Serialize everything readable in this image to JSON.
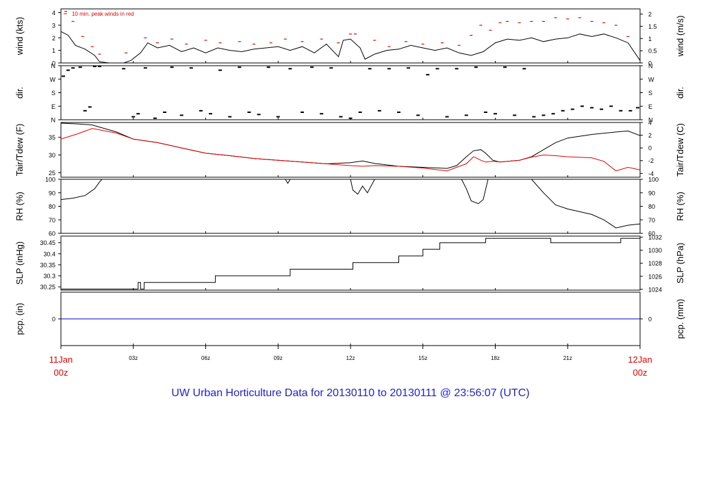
{
  "caption": "UW Urban Horticulture Data for 20130110  to  20130111 @ 23:56:07  (UTC)",
  "colors": {
    "frame": "#000000",
    "primary": "#000000",
    "secondary": "#e00000",
    "precip": "#0000cc",
    "time_label": "#e00000",
    "caption": "#1f1fd0"
  },
  "x_axis": {
    "range_hours": [
      0,
      24
    ],
    "ticks": [
      {
        "hour": 0,
        "label": "11Jan",
        "sublabel": "00z",
        "color": "#e00000",
        "big": true
      },
      {
        "hour": 3,
        "label": "03z"
      },
      {
        "hour": 6,
        "label": "06z"
      },
      {
        "hour": 9,
        "label": "09z"
      },
      {
        "hour": 12,
        "label": "12z"
      },
      {
        "hour": 15,
        "label": "15z"
      },
      {
        "hour": 18,
        "label": "18z"
      },
      {
        "hour": 21,
        "label": "21z"
      },
      {
        "hour": 24,
        "label": "12Jan",
        "sublabel": "00z",
        "color": "#e00000",
        "big": true
      }
    ]
  },
  "chart_data": [
    {
      "id": "wind",
      "type": "line",
      "left_label": "wind (kts)",
      "right_label": "wind (m/s)",
      "ylim": [
        0,
        4.3
      ],
      "left_ticks": [
        0,
        1,
        2,
        3,
        4
      ],
      "right_ticks": [
        "0",
        "0.5",
        "1",
        "1.5",
        "2"
      ],
      "right_factor": 0.514444,
      "annotation": "10 min. peak winds in red",
      "series": [
        {
          "name": "wind",
          "x": [
            0,
            0.3,
            0.6,
            1,
            1.4,
            1.6,
            2,
            2.6,
            2.9,
            3.3,
            3.6,
            4,
            4.5,
            5,
            5.5,
            6,
            6.5,
            7,
            7.5,
            8,
            8.5,
            9,
            9.5,
            10,
            10.5,
            11,
            11.5,
            11.7,
            12,
            12.4,
            12.6,
            13,
            13.5,
            14,
            14.5,
            15,
            15.5,
            16,
            16.5,
            17,
            17.5,
            18,
            18.5,
            19,
            19.5,
            20,
            20.5,
            21,
            21.5,
            22,
            22.5,
            23,
            23.5,
            24
          ],
          "y": [
            2.5,
            2.2,
            1.4,
            1.1,
            0.6,
            0.1,
            0,
            0,
            0.2,
            0.8,
            1.6,
            1.2,
            1.4,
            0.9,
            1.2,
            0.8,
            1.2,
            1.0,
            0.9,
            1.1,
            1.2,
            1.3,
            1.0,
            1.3,
            0.8,
            1.5,
            0.5,
            1.8,
            1.9,
            1.2,
            0.3,
            0.7,
            1.0,
            1.1,
            1.4,
            1.2,
            1.0,
            1.2,
            0.8,
            0.6,
            0.9,
            1.6,
            1.9,
            1.8,
            2.0,
            1.7,
            1.9,
            2.0,
            2.3,
            2.1,
            2.3,
            2.0,
            1.6,
            0.2
          ]
        },
        {
          "name": "10 min. peak winds",
          "style": "ticks",
          "x": [
            0.2,
            0.5,
            0.9,
            1.3,
            1.6,
            2.7,
            3.5,
            4.0,
            4.6,
            5.2,
            6.0,
            6.6,
            7.4,
            8.0,
            8.7,
            9.3,
            10.0,
            10.8,
            11.5,
            12.0,
            12.2,
            13.0,
            13.6,
            14.3,
            15.0,
            15.8,
            16.5,
            17.0,
            17.4,
            17.8,
            18.2,
            18.5,
            19.0,
            19.5,
            20.0,
            20.5,
            21.0,
            21.5,
            22.0,
            22.5,
            23.0,
            23.5
          ],
          "y": [
            4.1,
            3.3,
            2.1,
            1.3,
            0.7,
            0.8,
            2.0,
            1.6,
            1.9,
            1.5,
            1.8,
            1.6,
            1.7,
            1.5,
            1.6,
            1.9,
            1.7,
            1.9,
            1.6,
            2.3,
            2.3,
            1.8,
            1.3,
            1.7,
            1.5,
            1.6,
            1.4,
            2.2,
            3.0,
            2.6,
            3.2,
            3.3,
            3.2,
            3.3,
            3.3,
            3.6,
            3.5,
            3.6,
            3.3,
            3.2,
            3.0,
            2.1
          ]
        }
      ]
    },
    {
      "id": "dir",
      "type": "scatter",
      "left_label": "dir.",
      "right_label": "dir.",
      "ylim": [
        0,
        360
      ],
      "left_ticks": [
        {
          "value": 0,
          "label": "N"
        },
        {
          "value": 90,
          "label": "E"
        },
        {
          "value": 180,
          "label": "S"
        },
        {
          "value": 270,
          "label": "W"
        },
        {
          "value": 360,
          "label": "N"
        }
      ],
      "right_ticks": [
        {
          "value": 0,
          "label": "N"
        },
        {
          "value": 90,
          "label": "E"
        },
        {
          "value": 180,
          "label": "S"
        },
        {
          "value": 270,
          "label": "W"
        },
        {
          "value": 360,
          "label": "N"
        }
      ],
      "series": [
        {
          "name": "dir",
          "style": "dashes",
          "x": [
            0.1,
            0.3,
            0.5,
            0.8,
            1.0,
            1.2,
            1.4,
            1.6,
            2.6,
            3.0,
            3.2,
            3.5,
            3.9,
            4.3,
            4.6,
            5.0,
            5.4,
            5.8,
            6.2,
            6.6,
            7.0,
            7.4,
            7.8,
            8.2,
            8.6,
            9.0,
            9.5,
            10.0,
            10.4,
            10.8,
            11.2,
            11.6,
            12.0,
            12.4,
            12.8,
            13.2,
            13.6,
            14.0,
            14.4,
            14.8,
            15.2,
            15.6,
            16.0,
            16.4,
            16.8,
            17.2,
            17.6,
            18.0,
            18.4,
            18.8,
            19.2,
            19.6,
            20.0,
            20.4,
            20.8,
            21.2,
            21.6,
            22.0,
            22.4,
            22.8,
            23.2,
            23.6,
            23.9
          ],
          "y": [
            290,
            330,
            345,
            350,
            60,
            85,
            355,
            355,
            340,
            20,
            40,
            345,
            10,
            50,
            350,
            30,
            345,
            60,
            40,
            330,
            20,
            350,
            50,
            35,
            350,
            20,
            340,
            50,
            350,
            40,
            345,
            20,
            10,
            50,
            340,
            60,
            340,
            50,
            345,
            30,
            300,
            340,
            20,
            340,
            30,
            350,
            50,
            40,
            350,
            30,
            340,
            20,
            30,
            40,
            60,
            70,
            90,
            80,
            70,
            90,
            60,
            60,
            80
          ]
        }
      ]
    },
    {
      "id": "temp",
      "type": "line",
      "left_label": "Tair/Tdew (F)",
      "right_label": "Tair/Tdew (C)",
      "ylim": [
        23.7,
        39.2
      ],
      "left_ticks": [
        25,
        30,
        35
      ],
      "right_ticks": [
        "-4",
        "-2",
        "0",
        "2",
        "4"
      ],
      "right_mode": "celsius",
      "series": [
        {
          "name": "Tair",
          "x": [
            0,
            0.7,
            1.3,
            2.3,
            3,
            4,
            5,
            6,
            7,
            8,
            9,
            10,
            11,
            12,
            12.5,
            13,
            14,
            15,
            16,
            16.4,
            16.8,
            17.1,
            17.4,
            17.6,
            17.9,
            18.2,
            19,
            19.5,
            20,
            20.5,
            21,
            22,
            23,
            23.5,
            24
          ],
          "y": [
            39,
            38.8,
            38.5,
            36.5,
            34.5,
            33.5,
            32,
            30.5,
            29.8,
            29,
            28.5,
            28,
            27.5,
            27.8,
            28.3,
            27.6,
            26.8,
            26.5,
            26.2,
            27,
            29.5,
            31.2,
            31.5,
            30.5,
            28.5,
            28,
            28.5,
            29.5,
            31.5,
            33.5,
            34.8,
            35.8,
            36.5,
            36.8,
            35.5
          ]
        },
        {
          "name": "Tdew",
          "x": [
            0,
            0.7,
            1.3,
            2.3,
            3,
            4,
            5,
            6,
            7,
            8,
            9,
            10,
            11,
            12,
            12.5,
            13,
            14,
            15,
            16,
            16.4,
            16.8,
            17.1,
            17.4,
            17.6,
            17.9,
            18.2,
            19,
            19.5,
            20,
            20.5,
            21,
            22,
            22.5,
            23,
            23.5,
            24
          ],
          "y": [
            34.5,
            36,
            37.5,
            36.2,
            34.5,
            33.5,
            32,
            30.5,
            29.8,
            29,
            28.5,
            28,
            27.5,
            27,
            26.8,
            27,
            26.8,
            26.3,
            25.5,
            26.5,
            27.5,
            29.5,
            28.5,
            28,
            28.2,
            28,
            28.5,
            29.4,
            30,
            29.8,
            29.5,
            29.2,
            28.2,
            25.5,
            26.5,
            25.8
          ]
        }
      ]
    },
    {
      "id": "rh",
      "type": "line",
      "left_label": "RH (%)",
      "right_label": "RH (%)",
      "ylim": [
        60,
        100
      ],
      "left_ticks": [
        60,
        70,
        80,
        90,
        100
      ],
      "right_ticks": [
        "60",
        "70",
        "80",
        "90",
        "100"
      ],
      "series": [
        {
          "name": "RH",
          "x": [
            0,
            0.5,
            1,
            1.4,
            1.6,
            1.7,
            9.3,
            9.4,
            9.5,
            12,
            12.1,
            12.3,
            12.5,
            12.7,
            13,
            16.6,
            16.8,
            17.0,
            17.3,
            17.5,
            17.7,
            19.5,
            20,
            20.5,
            21,
            21.5,
            22,
            22.5,
            23,
            23.5,
            24
          ],
          "y": [
            85,
            86,
            88,
            93,
            98,
            100,
            100,
            97,
            100,
            100,
            92,
            89,
            95,
            90,
            100,
            100,
            93,
            84,
            82,
            85,
            100,
            100,
            90,
            81,
            78,
            76,
            74,
            70,
            64,
            66,
            67
          ]
        }
      ]
    },
    {
      "id": "slp",
      "type": "line",
      "left_label": "SLP (inHg)",
      "right_label": "SLP (hPa)",
      "ylim": [
        30.235,
        30.48
      ],
      "left_ticks": [
        30.25,
        30.3,
        30.35,
        30.4,
        30.45
      ],
      "right_ticks": [
        "1024",
        "1026",
        "1028",
        "1030",
        "1032"
      ],
      "right_mode": "hpa",
      "step": true,
      "series": [
        {
          "name": "SLP",
          "x": [
            0,
            3.1,
            3.2,
            3.3,
            3.45,
            6.4,
            9.5,
            12.1,
            14,
            15,
            15.7,
            17.6,
            20.3,
            23.2,
            24
          ],
          "y": [
            30.24,
            30.24,
            30.27,
            30.24,
            30.27,
            30.3,
            30.33,
            30.36,
            30.39,
            30.42,
            30.45,
            30.47,
            30.45,
            30.47,
            30.47
          ]
        }
      ]
    },
    {
      "id": "pcp",
      "type": "line",
      "left_label": "pcp. (in)",
      "right_label": "pcp. (mm)",
      "ylim": [
        -0.6,
        0.6
      ],
      "left_ticks": [
        {
          "value": 0,
          "label": "0"
        }
      ],
      "right_ticks": [
        {
          "value": 0,
          "label": "0"
        }
      ],
      "series": [
        {
          "name": "pcp",
          "x": [
            0,
            24
          ],
          "y": [
            0,
            0
          ]
        }
      ]
    }
  ]
}
